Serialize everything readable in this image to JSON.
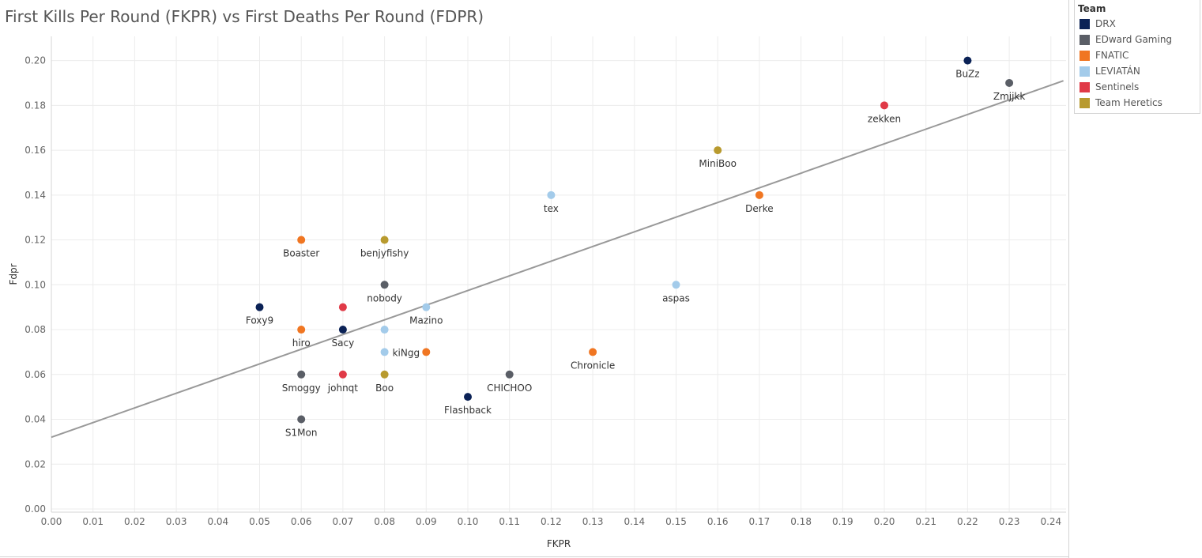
{
  "chart_data": {
    "type": "scatter",
    "title": "First Kills Per Round (FKPR) vs First Deaths Per Round (FDPR)",
    "xlabel": "FKPR",
    "ylabel": "Fdpr",
    "xlim": [
      0,
      0.24
    ],
    "ylim": [
      0,
      0.2
    ],
    "x_ticks": [
      "0.00",
      "0.01",
      "0.02",
      "0.03",
      "0.04",
      "0.05",
      "0.06",
      "0.07",
      "0.08",
      "0.09",
      "0.10",
      "0.11",
      "0.12",
      "0.13",
      "0.14",
      "0.15",
      "0.16",
      "0.17",
      "0.18",
      "0.19",
      "0.20",
      "0.21",
      "0.22",
      "0.23",
      "0.24"
    ],
    "y_ticks": [
      "0.00",
      "0.02",
      "0.04",
      "0.06",
      "0.08",
      "0.10",
      "0.12",
      "0.14",
      "0.16",
      "0.18",
      "0.20"
    ],
    "grid": true,
    "legend": {
      "title": "Team",
      "placement": "right",
      "entries": [
        {
          "name": "DRX",
          "color": "#0b2256"
        },
        {
          "name": "EDward Gaming",
          "color": "#5a5e66"
        },
        {
          "name": "FNATIC",
          "color": "#f07622"
        },
        {
          "name": "LEVIATÁN",
          "color": "#a3cbea"
        },
        {
          "name": "Sentinels",
          "color": "#e03a47"
        },
        {
          "name": "Team Heretics",
          "color": "#b89a2e"
        }
      ]
    },
    "trend_line": {
      "from": [
        0.0,
        0.032
      ],
      "to": [
        0.243,
        0.191
      ],
      "color": "#999999"
    },
    "points": [
      {
        "label": "BuZz",
        "team": "DRX",
        "x": 0.22,
        "y": 0.2
      },
      {
        "label": "Zmjjkk",
        "team": "EDward Gaming",
        "x": 0.23,
        "y": 0.19
      },
      {
        "label": "zekken",
        "team": "Sentinels",
        "x": 0.2,
        "y": 0.18
      },
      {
        "label": "MiniBoo",
        "team": "Team Heretics",
        "x": 0.16,
        "y": 0.16
      },
      {
        "label": "Derke",
        "team": "FNATIC",
        "x": 0.17,
        "y": 0.14
      },
      {
        "label": "tex",
        "team": "LEVIATÁN",
        "x": 0.12,
        "y": 0.14
      },
      {
        "label": "Boaster",
        "team": "FNATIC",
        "x": 0.06,
        "y": 0.12
      },
      {
        "label": "benjyfishy",
        "team": "Team Heretics",
        "x": 0.08,
        "y": 0.12
      },
      {
        "label": "nobody",
        "team": "EDward Gaming",
        "x": 0.08,
        "y": 0.1
      },
      {
        "label": "aspas",
        "team": "LEVIATÁN",
        "x": 0.15,
        "y": 0.1
      },
      {
        "label": "Foxy9",
        "team": "DRX",
        "x": 0.05,
        "y": 0.09
      },
      {
        "label": "",
        "team": "Sentinels",
        "x": 0.07,
        "y": 0.09
      },
      {
        "label": "Mazino",
        "team": "LEVIATÁN",
        "x": 0.09,
        "y": 0.09
      },
      {
        "label": "hiro",
        "team": "FNATIC",
        "x": 0.06,
        "y": 0.08
      },
      {
        "label": "Sacy",
        "team": "DRX",
        "x": 0.07,
        "y": 0.08
      },
      {
        "label": "",
        "team": "LEVIATÁN",
        "x": 0.08,
        "y": 0.08
      },
      {
        "label": "kiNgg",
        "team": "LEVIATÁN",
        "x": 0.08,
        "y": 0.07
      },
      {
        "label": "",
        "team": "FNATIC",
        "x": 0.09,
        "y": 0.07
      },
      {
        "label": "Chronicle",
        "team": "FNATIC",
        "x": 0.13,
        "y": 0.07
      },
      {
        "label": "Smoggy",
        "team": "EDward Gaming",
        "x": 0.06,
        "y": 0.06
      },
      {
        "label": "johnqt",
        "team": "Sentinels",
        "x": 0.07,
        "y": 0.06
      },
      {
        "label": "Boo",
        "team": "Team Heretics",
        "x": 0.08,
        "y": 0.06
      },
      {
        "label": "CHICHOO",
        "team": "EDward Gaming",
        "x": 0.11,
        "y": 0.06
      },
      {
        "label": "Flashback",
        "team": "DRX",
        "x": 0.1,
        "y": 0.05
      },
      {
        "label": "S1Mon",
        "team": "EDward Gaming",
        "x": 0.06,
        "y": 0.04
      }
    ]
  }
}
